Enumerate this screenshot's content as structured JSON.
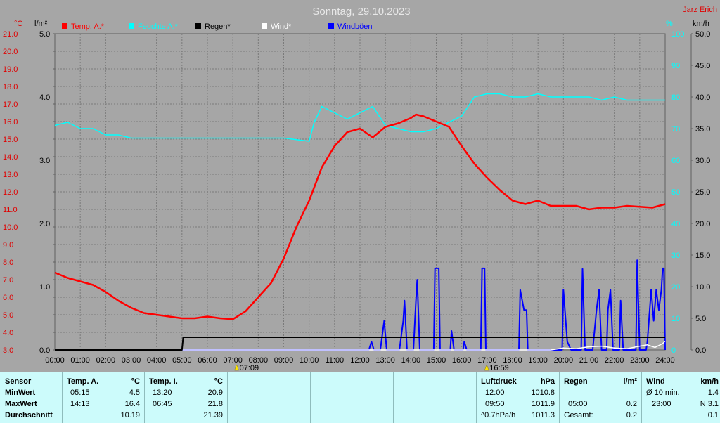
{
  "title": "Sonntag, 29.10.2023",
  "author": "Jarz Erich",
  "units": {
    "temp": "°C",
    "rain": "l/m²",
    "humidity": "%",
    "wind": "km/h"
  },
  "legend": [
    {
      "label": "Temp. A.*",
      "color": "#ff0000"
    },
    {
      "label": "Feuchte A.*",
      "color": "#00ffff"
    },
    {
      "label": "Regen*",
      "color": "#000000"
    },
    {
      "label": "Wind*",
      "color": "#ffffff"
    },
    {
      "label": "Windböen",
      "color": "#0000ff"
    }
  ],
  "axes": {
    "temp_ticks": [
      "21.0",
      "20.0",
      "19.0",
      "18.0",
      "17.0",
      "16.0",
      "15.0",
      "14.0",
      "13.0",
      "12.0",
      "11.0",
      "10.0",
      "9.0",
      "8.0",
      "7.0",
      "6.0",
      "5.0",
      "4.0",
      "3.0"
    ],
    "rain_ticks": [
      "5.0",
      "4.0",
      "3.0",
      "2.0",
      "1.0",
      "0.0"
    ],
    "humidity_ticks": [
      "100",
      "90",
      "80",
      "70",
      "60",
      "50",
      "40",
      "30",
      "20",
      "10",
      "0"
    ],
    "wind_ticks": [
      "50.0",
      "45.0",
      "40.0",
      "35.0",
      "30.0",
      "25.0",
      "20.0",
      "15.0",
      "10.0",
      "5.0",
      "0.0"
    ],
    "time_ticks": [
      "00:00",
      "01:00",
      "02:00",
      "03:00",
      "04:00",
      "05:00",
      "06:00",
      "07:00",
      "08:00",
      "09:00",
      "10:00",
      "11:00",
      "12:00",
      "13:00",
      "14:00",
      "15:00",
      "16:00",
      "17:00",
      "18:00",
      "19:00",
      "20:00",
      "21:00",
      "22:00",
      "23:00",
      "24:00"
    ],
    "sunrise": "07:09",
    "sunset": "16:59"
  },
  "chart_data": {
    "type": "line",
    "title": "Sonntag, 29.10.2023",
    "x_unit": "hour",
    "temp_ylim": [
      3,
      21
    ],
    "rain_ylim": [
      0,
      5
    ],
    "humidity_ylim": [
      0,
      100
    ],
    "wind_ylim": [
      0,
      50
    ],
    "series": [
      {
        "name": "Temp. A.*",
        "axis": "temp",
        "color": "#ff0000",
        "points": [
          [
            0,
            7.4
          ],
          [
            0.5,
            7.1
          ],
          [
            1,
            6.9
          ],
          [
            1.5,
            6.7
          ],
          [
            2,
            6.3
          ],
          [
            2.5,
            5.8
          ],
          [
            3,
            5.4
          ],
          [
            3.5,
            5.1
          ],
          [
            4,
            5.0
          ],
          [
            4.5,
            4.9
          ],
          [
            5,
            4.8
          ],
          [
            5.5,
            4.8
          ],
          [
            6,
            4.9
          ],
          [
            6.5,
            4.8
          ],
          [
            7,
            4.75
          ],
          [
            7.5,
            5.2
          ],
          [
            8,
            6.0
          ],
          [
            8.5,
            6.8
          ],
          [
            9,
            8.2
          ],
          [
            9.5,
            10.0
          ],
          [
            10,
            11.5
          ],
          [
            10.5,
            13.4
          ],
          [
            11,
            14.6
          ],
          [
            11.5,
            15.4
          ],
          [
            12,
            15.6
          ],
          [
            12.5,
            15.1
          ],
          [
            13,
            15.7
          ],
          [
            13.5,
            15.9
          ],
          [
            14,
            16.2
          ],
          [
            14.2,
            16.4
          ],
          [
            14.5,
            16.3
          ],
          [
            15,
            16.0
          ],
          [
            15.5,
            15.7
          ],
          [
            16,
            14.6
          ],
          [
            16.5,
            13.6
          ],
          [
            17,
            12.8
          ],
          [
            17.5,
            12.1
          ],
          [
            18,
            11.5
          ],
          [
            18.5,
            11.3
          ],
          [
            19,
            11.5
          ],
          [
            19.5,
            11.2
          ],
          [
            20,
            11.2
          ],
          [
            20.5,
            11.2
          ],
          [
            21,
            11.0
          ],
          [
            21.5,
            11.1
          ],
          [
            22,
            11.1
          ],
          [
            22.5,
            11.2
          ],
          [
            23,
            11.15
          ],
          [
            23.5,
            11.1
          ],
          [
            24,
            11.3
          ]
        ]
      },
      {
        "name": "Feuchte A.*",
        "axis": "humidity",
        "color": "#00ffff",
        "points": [
          [
            0,
            71
          ],
          [
            0.5,
            72
          ],
          [
            1,
            70
          ],
          [
            1.5,
            70
          ],
          [
            2,
            68
          ],
          [
            2.5,
            68
          ],
          [
            3,
            67
          ],
          [
            4,
            67
          ],
          [
            5,
            67
          ],
          [
            6,
            67
          ],
          [
            7,
            67
          ],
          [
            8,
            67
          ],
          [
            9,
            67
          ],
          [
            10,
            66
          ],
          [
            10.2,
            72
          ],
          [
            10.5,
            77
          ],
          [
            11,
            75
          ],
          [
            11.5,
            73
          ],
          [
            12,
            75
          ],
          [
            12.5,
            77
          ],
          [
            13,
            71
          ],
          [
            13.5,
            70
          ],
          [
            14,
            69
          ],
          [
            14.5,
            69
          ],
          [
            15,
            70
          ],
          [
            15.5,
            72
          ],
          [
            16,
            74
          ],
          [
            16.5,
            80
          ],
          [
            17,
            81
          ],
          [
            17.5,
            81
          ],
          [
            18,
            80
          ],
          [
            18.5,
            80
          ],
          [
            19,
            81
          ],
          [
            19.5,
            80
          ],
          [
            20,
            80
          ],
          [
            21,
            80
          ],
          [
            21.5,
            79
          ],
          [
            22,
            80
          ],
          [
            22.5,
            79
          ],
          [
            23,
            79
          ],
          [
            24,
            79
          ]
        ]
      },
      {
        "name": "Regen*",
        "axis": "rain",
        "color": "#000000",
        "points": [
          [
            0,
            0
          ],
          [
            5,
            0
          ],
          [
            5.05,
            0.2
          ],
          [
            5.5,
            0.2
          ],
          [
            6,
            0.2
          ],
          [
            24,
            0.2
          ]
        ]
      },
      {
        "name": "Windböen",
        "axis": "wind",
        "color": "#0000ff",
        "points": [
          [
            0,
            0
          ],
          [
            12.35,
            0
          ],
          [
            12.45,
            1.3
          ],
          [
            12.55,
            0
          ],
          [
            12.8,
            0
          ],
          [
            12.95,
            4.6
          ],
          [
            13.05,
            0
          ],
          [
            13.55,
            0
          ],
          [
            13.7,
            4.6
          ],
          [
            13.75,
            7.8
          ],
          [
            13.85,
            0
          ],
          [
            14.1,
            0
          ],
          [
            14.2,
            7.8
          ],
          [
            14.25,
            11.1
          ],
          [
            14.35,
            0
          ],
          [
            14.9,
            0
          ],
          [
            14.95,
            12.9
          ],
          [
            15.1,
            12.9
          ],
          [
            15.15,
            0
          ],
          [
            15.55,
            0
          ],
          [
            15.6,
            3.0
          ],
          [
            15.7,
            0
          ],
          [
            16.05,
            0
          ],
          [
            16.1,
            1.3
          ],
          [
            16.2,
            0
          ],
          [
            16.75,
            0
          ],
          [
            16.8,
            12.9
          ],
          [
            16.9,
            12.9
          ],
          [
            16.95,
            0
          ],
          [
            18.25,
            0
          ],
          [
            18.3,
            9.5
          ],
          [
            18.45,
            6.3
          ],
          [
            18.55,
            6.3
          ],
          [
            18.6,
            0
          ],
          [
            19.0,
            0
          ],
          [
            19.5,
            0
          ],
          [
            19.95,
            0
          ],
          [
            20.0,
            9.5
          ],
          [
            20.15,
            1.3
          ],
          [
            20.3,
            0
          ],
          [
            20.7,
            0
          ],
          [
            20.75,
            12.8
          ],
          [
            20.85,
            0
          ],
          [
            21.15,
            0
          ],
          [
            21.3,
            6.3
          ],
          [
            21.4,
            9.5
          ],
          [
            21.5,
            0
          ],
          [
            21.7,
            0
          ],
          [
            21.75,
            6.3
          ],
          [
            21.85,
            9.5
          ],
          [
            21.95,
            0
          ],
          [
            22.2,
            0
          ],
          [
            22.25,
            7.8
          ],
          [
            22.35,
            0
          ],
          [
            22.85,
            0
          ],
          [
            22.9,
            14.2
          ],
          [
            23.0,
            0
          ],
          [
            23.25,
            0
          ],
          [
            23.3,
            1.3
          ],
          [
            23.45,
            9.5
          ],
          [
            23.55,
            4.6
          ],
          [
            23.65,
            9.5
          ],
          [
            23.75,
            6.3
          ],
          [
            23.85,
            9.5
          ],
          [
            23.9,
            12.9
          ],
          [
            23.95,
            12.9
          ],
          [
            24,
            0
          ]
        ]
      },
      {
        "name": "Wind*",
        "axis": "wind",
        "color": "#ffffff",
        "points": [
          [
            0,
            0
          ],
          [
            19.5,
            0
          ],
          [
            20,
            0.3
          ],
          [
            20.5,
            0.2
          ],
          [
            21,
            0.5
          ],
          [
            21.5,
            0.6
          ],
          [
            22,
            0.3
          ],
          [
            22.5,
            0.2
          ],
          [
            23,
            0.6
          ],
          [
            23.3,
            0.8
          ],
          [
            23.6,
            0.4
          ],
          [
            23.9,
            1.0
          ],
          [
            24,
            1.4
          ]
        ]
      }
    ]
  },
  "stats": {
    "labels": {
      "sensor": "Sensor",
      "min": "MinWert",
      "max": "MaxWert",
      "avg": "Durchschnitt"
    },
    "temp_a": {
      "header": "Temp. A.",
      "unit": "°C",
      "min_time": "05:15",
      "min_val": "4.5",
      "max_time": "14:13",
      "max_val": "16.4",
      "avg": "10.19"
    },
    "temp_i": {
      "header": "Temp. I.",
      "unit": "°C",
      "min_time": "13:20",
      "min_val": "20.9",
      "max_time": "06:45",
      "max_val": "21.8",
      "avg": "21.39"
    },
    "pressure": {
      "header": "Luftdruck",
      "unit": "hPa",
      "r1_time": "12:00",
      "r1_val": "1010.8",
      "r2_time": "09:50",
      "r2_val": "1011.9",
      "r3_label": "^0.7hPa/h",
      "r3_val": "1011.3"
    },
    "rain": {
      "header": "Regen",
      "unit": "l/m²",
      "r2_time": "05:00",
      "r2_val": "0.2",
      "r3_label": "Gesamt:",
      "r3_val": "0.2"
    },
    "wind": {
      "header": "Wind",
      "unit": "km/h",
      "r1_label": "Ø 10 min.",
      "r1_val": "1.4",
      "r2_time": "23:00",
      "r2_val": "N 3.1",
      "r3_val": "0.1"
    }
  }
}
